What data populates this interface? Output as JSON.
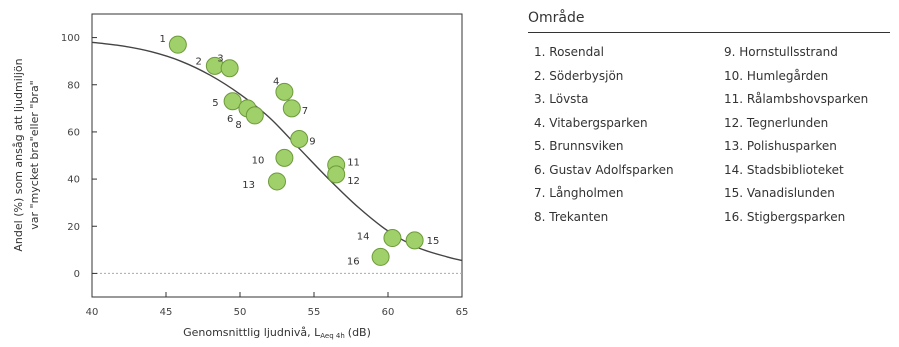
{
  "chart_data": {
    "type": "scatter",
    "ylabel_line1": "Andel (%) som ansåg att ljudmiljön",
    "ylabel_line2": "var \"mycket bra\"eller \"bra\"",
    "xlabel": "Genomsnittlig ljudnivå, L",
    "xlabel_sub": "Aeq 4h",
    "xlabel_unit": "(dB)",
    "xlim": [
      40,
      65
    ],
    "ylim": [
      -10,
      110
    ],
    "xticks": [
      40,
      45,
      50,
      55,
      60,
      65
    ],
    "yticks": [
      0,
      20,
      40,
      60,
      80,
      100
    ],
    "grid": false,
    "reference_line_y": 0,
    "points": [
      {
        "id": "1",
        "x": 45.8,
        "y": 97
      },
      {
        "id": "2",
        "x": 48.3,
        "y": 88
      },
      {
        "id": "3",
        "x": 49.3,
        "y": 87
      },
      {
        "id": "4",
        "x": 53.0,
        "y": 77
      },
      {
        "id": "5",
        "x": 49.5,
        "y": 73
      },
      {
        "id": "6",
        "x": 50.5,
        "y": 70
      },
      {
        "id": "7",
        "x": 53.5,
        "y": 70
      },
      {
        "id": "8",
        "x": 51.0,
        "y": 67
      },
      {
        "id": "9",
        "x": 54.0,
        "y": 57
      },
      {
        "id": "10",
        "x": 53.0,
        "y": 49
      },
      {
        "id": "11",
        "x": 56.5,
        "y": 46
      },
      {
        "id": "12",
        "x": 56.5,
        "y": 42
      },
      {
        "id": "13",
        "x": 52.5,
        "y": 39
      },
      {
        "id": "14",
        "x": 60.3,
        "y": 15
      },
      {
        "id": "15",
        "x": 61.8,
        "y": 14
      },
      {
        "id": "16",
        "x": 59.5,
        "y": 7
      }
    ],
    "fit_curve": {
      "x": [
        40,
        42,
        44,
        46,
        48,
        50,
        52,
        54,
        56,
        58,
        60,
        62,
        64,
        65
      ],
      "y": [
        98,
        96.5,
        94,
        90,
        84,
        76,
        66,
        53,
        40,
        28,
        18,
        11,
        7,
        5.5
      ]
    },
    "colors": {
      "point_fill": "#9fd06a",
      "point_stroke": "#6d9a3a",
      "curve": "#444444",
      "reference": "#aaaaaa"
    }
  },
  "legend": {
    "title": "Område",
    "col1": [
      "1. Rosendal",
      "2. Söderbysjön",
      "3. Lövsta",
      "4. Vitabergsparken",
      "5. Brunnsviken",
      "6. Gustav Adolfsparken",
      "7. Långholmen",
      "8. Trekanten"
    ],
    "col2": [
      "9. Hornstullsstrand",
      "10. Humlegården",
      "11. Rålambshovsparken",
      "12. Tegnerlunden",
      "13. Polishusparken",
      "14. Stadsbiblioteket",
      "15. Vanadislunden",
      "16. Stigbergsparken"
    ]
  }
}
